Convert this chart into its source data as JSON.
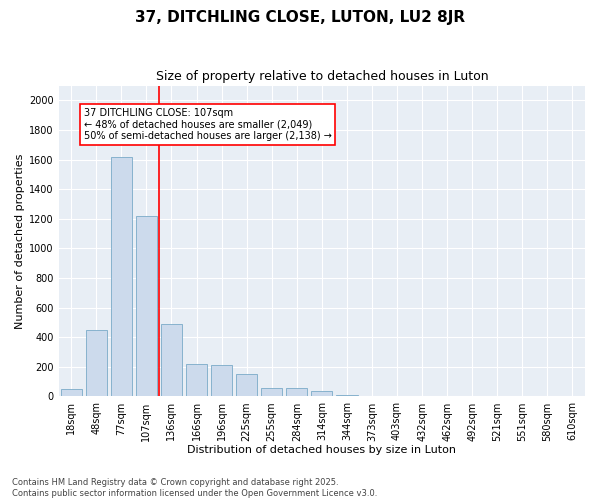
{
  "title": "37, DITCHLING CLOSE, LUTON, LU2 8JR",
  "subtitle": "Size of property relative to detached houses in Luton",
  "xlabel": "Distribution of detached houses by size in Luton",
  "ylabel": "Number of detached properties",
  "categories": [
    "18sqm",
    "48sqm",
    "77sqm",
    "107sqm",
    "136sqm",
    "166sqm",
    "196sqm",
    "225sqm",
    "255sqm",
    "284sqm",
    "314sqm",
    "344sqm",
    "373sqm",
    "403sqm",
    "432sqm",
    "462sqm",
    "492sqm",
    "521sqm",
    "551sqm",
    "580sqm",
    "610sqm"
  ],
  "values": [
    50,
    450,
    1620,
    1220,
    490,
    220,
    215,
    150,
    60,
    55,
    40,
    10,
    0,
    0,
    0,
    0,
    0,
    0,
    0,
    0,
    0
  ],
  "bar_color": "#ccdaec",
  "bar_edge_color": "#7aaac8",
  "vline_x": 3.5,
  "vline_color": "red",
  "annotation_text": "37 DITCHLING CLOSE: 107sqm\n← 48% of detached houses are smaller (2,049)\n50% of semi-detached houses are larger (2,138) →",
  "annotation_box_color": "red",
  "ylim": [
    0,
    2100
  ],
  "yticks": [
    0,
    200,
    400,
    600,
    800,
    1000,
    1200,
    1400,
    1600,
    1800,
    2000
  ],
  "plot_bg_color": "#e8eef5",
  "footer": "Contains HM Land Registry data © Crown copyright and database right 2025.\nContains public sector information licensed under the Open Government Licence v3.0.",
  "title_fontsize": 11,
  "subtitle_fontsize": 9,
  "xlabel_fontsize": 8,
  "ylabel_fontsize": 8,
  "tick_fontsize": 7,
  "footer_fontsize": 6,
  "annot_fontsize": 7
}
